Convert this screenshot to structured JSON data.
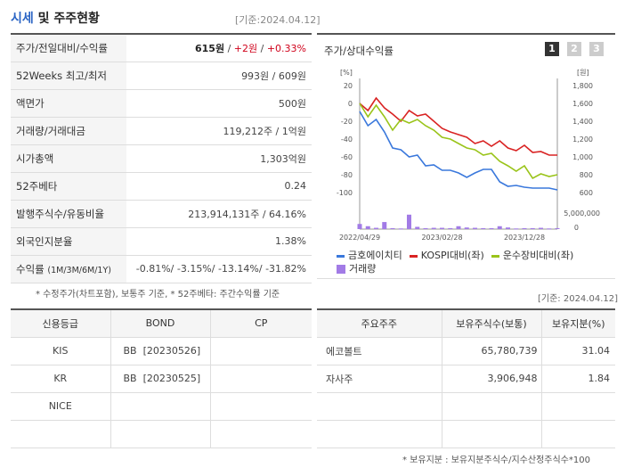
{
  "header": {
    "title_part1": "시세",
    "title_part2": " 및 주주현황",
    "base_date": "[기준:2024.04.12]"
  },
  "quote": {
    "rows": [
      {
        "label": "주가/전일대비/수익률",
        "price": "615원",
        "sep1": " / ",
        "change": "+2원",
        "sep2": " / ",
        "rate": "+0.33%"
      },
      {
        "label": "52Weeks 최고/최저",
        "value": "993원 / 609원"
      },
      {
        "label": "액면가",
        "value": "500원"
      },
      {
        "label": "거래량/거래대금",
        "value": "119,212주 / 1억원"
      },
      {
        "label": "시가총액",
        "value": "1,303억원"
      },
      {
        "label": "52주베타",
        "value": "0.24"
      },
      {
        "label": "발행주식수/유동비율",
        "value": "213,914,131주 / 64.16%"
      },
      {
        "label": "외국인지분율",
        "value": "1.38%"
      },
      {
        "label": "수익률",
        "label_sub": "(1M/3M/6M/1Y)",
        "value": "-0.81%/ -3.15%/ -13.14%/ -31.82%"
      }
    ],
    "note": "* 수정주가(차트포함), 보통주 기준, * 52주베타: 주간수익률 기준"
  },
  "chart_panel": {
    "title": "주가/상대수익률",
    "pages": [
      "1",
      "2",
      "3"
    ],
    "active_page": "1"
  },
  "chart_data": {
    "type": "line",
    "x": [
      "2022-04",
      "2022-05",
      "2022-06",
      "2022-07",
      "2022-08",
      "2022-09",
      "2022-10",
      "2022-11",
      "2022-12",
      "2023-01",
      "2023-02",
      "2023-03",
      "2023-04",
      "2023-05",
      "2023-06",
      "2023-07",
      "2023-08",
      "2023-09",
      "2023-10",
      "2023-11",
      "2023-12",
      "2024-01",
      "2024-02",
      "2024-03",
      "2024-04"
    ],
    "x_tick_labels": [
      "2022/04/29",
      "2023/02/28",
      "2023/12/28"
    ],
    "y_left_unit": "[%]",
    "y_left_ticks": [
      "20",
      "0",
      "-20",
      "-40",
      "-60",
      "-80",
      "-100"
    ],
    "y_left_range": [
      -100,
      20
    ],
    "y_right_unit": "[원]",
    "y_right_ticks": [
      "1,800",
      "1,600",
      "1,400",
      "1,200",
      "1,000",
      "800",
      "600"
    ],
    "y_right_range": [
      600,
      1800
    ],
    "volume_axis_ticks": [
      "5,000,000",
      "0"
    ],
    "volume_range": [
      0,
      5000000
    ],
    "series": [
      {
        "name": "금호에이치티",
        "color": "#3a78dc",
        "values": [
          -9,
          -25,
          -18,
          -32,
          -50,
          -52,
          -60,
          -58,
          -70,
          -69,
          -75,
          -75,
          -78,
          -83,
          -78,
          -74,
          -74,
          -88,
          -93,
          -92,
          -94,
          -95,
          -95,
          -95,
          -97
        ]
      },
      {
        "name": "KOSPI대비(좌)",
        "color": "#d92323",
        "values": [
          0,
          -8,
          6,
          -5,
          -12,
          -20,
          -8,
          -14,
          -12,
          -20,
          -28,
          -32,
          -35,
          -38,
          -45,
          -42,
          -48,
          -42,
          -50,
          -53,
          -47,
          -55,
          -54,
          -58,
          -58
        ]
      },
      {
        "name": "운수장비대비(좌)",
        "color": "#9ac41a",
        "values": [
          0,
          -15,
          -2,
          -15,
          -30,
          -18,
          -22,
          -18,
          -25,
          -30,
          -38,
          -40,
          -45,
          -50,
          -52,
          -58,
          -56,
          -65,
          -70,
          -76,
          -70,
          -84,
          -79,
          -82,
          -80
        ]
      }
    ],
    "volume": {
      "name": "거래량",
      "color": "#a27be6",
      "values": [
        1600000,
        900000,
        400000,
        2200000,
        300000,
        200000,
        4500000,
        700000,
        300000,
        400000,
        400000,
        300000,
        900000,
        500000,
        400000,
        300000,
        300000,
        900000,
        500000,
        200000,
        300000,
        300000,
        400000,
        200000,
        300000
      ]
    }
  },
  "credit": {
    "headers": [
      "신용등급",
      "BOND",
      "CP"
    ],
    "rows": [
      [
        "KIS",
        "BB  [20230526]",
        ""
      ],
      [
        "KR",
        "BB  [20230525]",
        ""
      ],
      [
        "NICE",
        "",
        ""
      ],
      [
        "",
        "",
        ""
      ]
    ]
  },
  "holders": {
    "base_date": "[기준: 2024.04.12]",
    "headers": [
      "주요주주",
      "보유주식수(보통)",
      "보유지분(%)"
    ],
    "rows": [
      [
        "에코볼트",
        "65,780,739",
        "31.04"
      ],
      [
        "자사주",
        "3,906,948",
        "1.84"
      ],
      [
        "",
        "",
        ""
      ],
      [
        "",
        "",
        ""
      ]
    ],
    "note": "* 보유지분 : 보유지분주식수/지수산정주식수*100"
  }
}
